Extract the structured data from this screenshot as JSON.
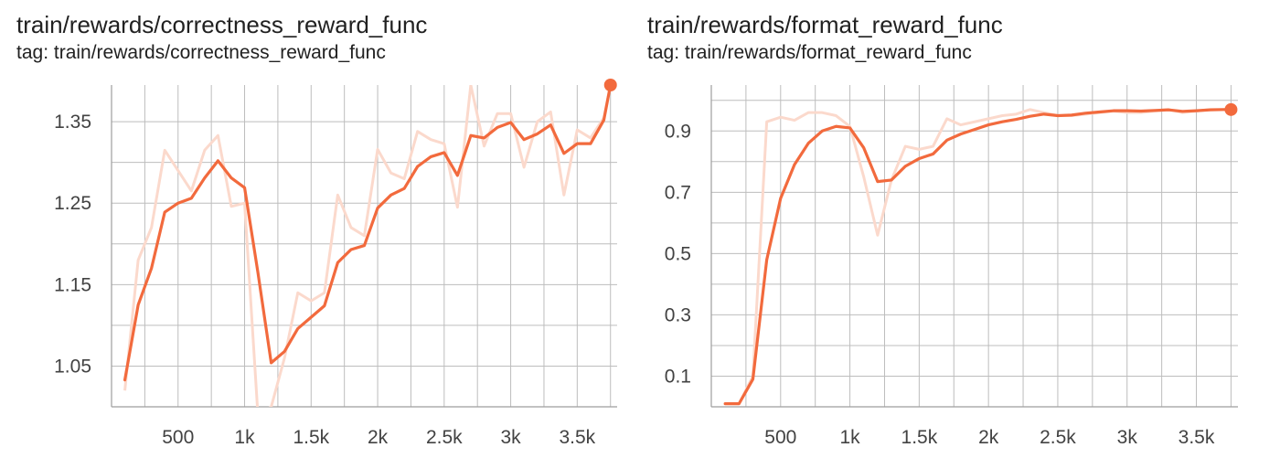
{
  "chart_data": [
    {
      "type": "line",
      "title": "train/rewards/correctness_reward_func",
      "subtitle": "tag: train/rewards/correctness_reward_func",
      "xlim": [
        0,
        3800
      ],
      "ylim": [
        1.0,
        1.395
      ],
      "x_ticks": [
        500,
        1000,
        1500,
        2000,
        2500,
        3000,
        3500
      ],
      "x_tick_labels": [
        "500",
        "1k",
        "1.5k",
        "2k",
        "2.5k",
        "3k",
        "3.5k"
      ],
      "y_ticks": [
        1.05,
        1.15,
        1.25,
        1.35
      ],
      "y_tick_labels": [
        "1.05",
        "1.15",
        "1.25",
        "1.35"
      ],
      "grid": true,
      "colors": {
        "smoothed": "#f26a3d",
        "raw": "#fbd9cc"
      },
      "series": [
        {
          "x": [
            100,
            200,
            300,
            400,
            500,
            600,
            700,
            800,
            900,
            1000,
            1100,
            1200,
            1300,
            1400,
            1500,
            1600,
            1700,
            1800,
            1900,
            2000,
            2100,
            2200,
            2300,
            2400,
            2500,
            2600,
            2700,
            2800,
            2900,
            3000,
            3100,
            3200,
            3300,
            3400,
            3500,
            3600,
            3700,
            3750
          ],
          "values": [
            1.02,
            1.18,
            1.22,
            1.315,
            1.29,
            1.265,
            1.315,
            1.333,
            1.246,
            1.25,
            0.99,
            1.0,
            1.06,
            1.14,
            1.13,
            1.14,
            1.26,
            1.22,
            1.21,
            1.316,
            1.287,
            1.28,
            1.338,
            1.328,
            1.323,
            1.245,
            1.395,
            1.32,
            1.36,
            1.36,
            1.294,
            1.35,
            1.362,
            1.26,
            1.34,
            1.33,
            1.355,
            1.395
          ]
        },
        {
          "x": [
            100,
            200,
            300,
            400,
            500,
            600,
            700,
            800,
            900,
            1000,
            1100,
            1200,
            1300,
            1400,
            1500,
            1600,
            1700,
            1800,
            1900,
            2000,
            2100,
            2200,
            2300,
            2400,
            2500,
            2600,
            2700,
            2800,
            2900,
            3000,
            3100,
            3200,
            3300,
            3400,
            3500,
            3600,
            3700,
            3750
          ],
          "values": [
            1.033,
            1.125,
            1.17,
            1.239,
            1.25,
            1.256,
            1.281,
            1.302,
            1.281,
            1.269,
            1.165,
            1.054,
            1.068,
            1.096,
            1.11,
            1.124,
            1.177,
            1.193,
            1.198,
            1.244,
            1.26,
            1.268,
            1.295,
            1.307,
            1.312,
            1.284,
            1.333,
            1.33,
            1.343,
            1.349,
            1.328,
            1.335,
            1.346,
            1.311,
            1.323,
            1.323,
            1.352,
            1.395
          ]
        }
      ]
    },
    {
      "type": "line",
      "title": "train/rewards/format_reward_func",
      "subtitle": "tag: train/rewards/format_reward_func",
      "xlim": [
        0,
        3800
      ],
      "ylim": [
        0.0,
        1.05
      ],
      "x_ticks": [
        500,
        1000,
        1500,
        2000,
        2500,
        3000,
        3500
      ],
      "x_tick_labels": [
        "500",
        "1k",
        "1.5k",
        "2k",
        "2.5k",
        "3k",
        "3.5k"
      ],
      "y_ticks": [
        0.1,
        0.3,
        0.5,
        0.7,
        0.9
      ],
      "y_tick_labels": [
        "0.1",
        "0.3",
        "0.5",
        "0.7",
        "0.9"
      ],
      "grid": true,
      "colors": {
        "smoothed": "#f26a3d",
        "raw": "#fbd9cc"
      },
      "series": [
        {
          "x": [
            100,
            200,
            300,
            400,
            500,
            600,
            700,
            800,
            900,
            1000,
            1100,
            1200,
            1300,
            1400,
            1500,
            1600,
            1700,
            1800,
            1900,
            2000,
            2100,
            2200,
            2300,
            2400,
            2500,
            2600,
            2700,
            2800,
            2900,
            3000,
            3100,
            3200,
            3300,
            3400,
            3500,
            3600,
            3700,
            3750
          ],
          "values": [
            0.01,
            0.01,
            0.1,
            0.93,
            0.945,
            0.935,
            0.96,
            0.96,
            0.95,
            0.915,
            0.75,
            0.56,
            0.74,
            0.85,
            0.84,
            0.85,
            0.94,
            0.92,
            0.93,
            0.94,
            0.95,
            0.955,
            0.97,
            0.96,
            0.95,
            0.95,
            0.955,
            0.96,
            0.965,
            0.96,
            0.96,
            0.965,
            0.97,
            0.96,
            0.965,
            0.97,
            0.97,
            0.97
          ]
        },
        {
          "x": [
            100,
            200,
            300,
            400,
            500,
            600,
            700,
            800,
            900,
            1000,
            1100,
            1200,
            1300,
            1400,
            1500,
            1600,
            1700,
            1800,
            1900,
            2000,
            2100,
            2200,
            2300,
            2400,
            2500,
            2600,
            2700,
            2800,
            2900,
            3000,
            3100,
            3200,
            3300,
            3400,
            3500,
            3600,
            3700,
            3750
          ],
          "values": [
            0.01,
            0.01,
            0.09,
            0.48,
            0.68,
            0.79,
            0.86,
            0.9,
            0.915,
            0.91,
            0.845,
            0.735,
            0.74,
            0.785,
            0.81,
            0.825,
            0.87,
            0.89,
            0.905,
            0.92,
            0.93,
            0.938,
            0.948,
            0.955,
            0.95,
            0.952,
            0.958,
            0.962,
            0.966,
            0.966,
            0.965,
            0.967,
            0.969,
            0.964,
            0.966,
            0.969,
            0.97,
            0.97
          ]
        }
      ]
    }
  ]
}
